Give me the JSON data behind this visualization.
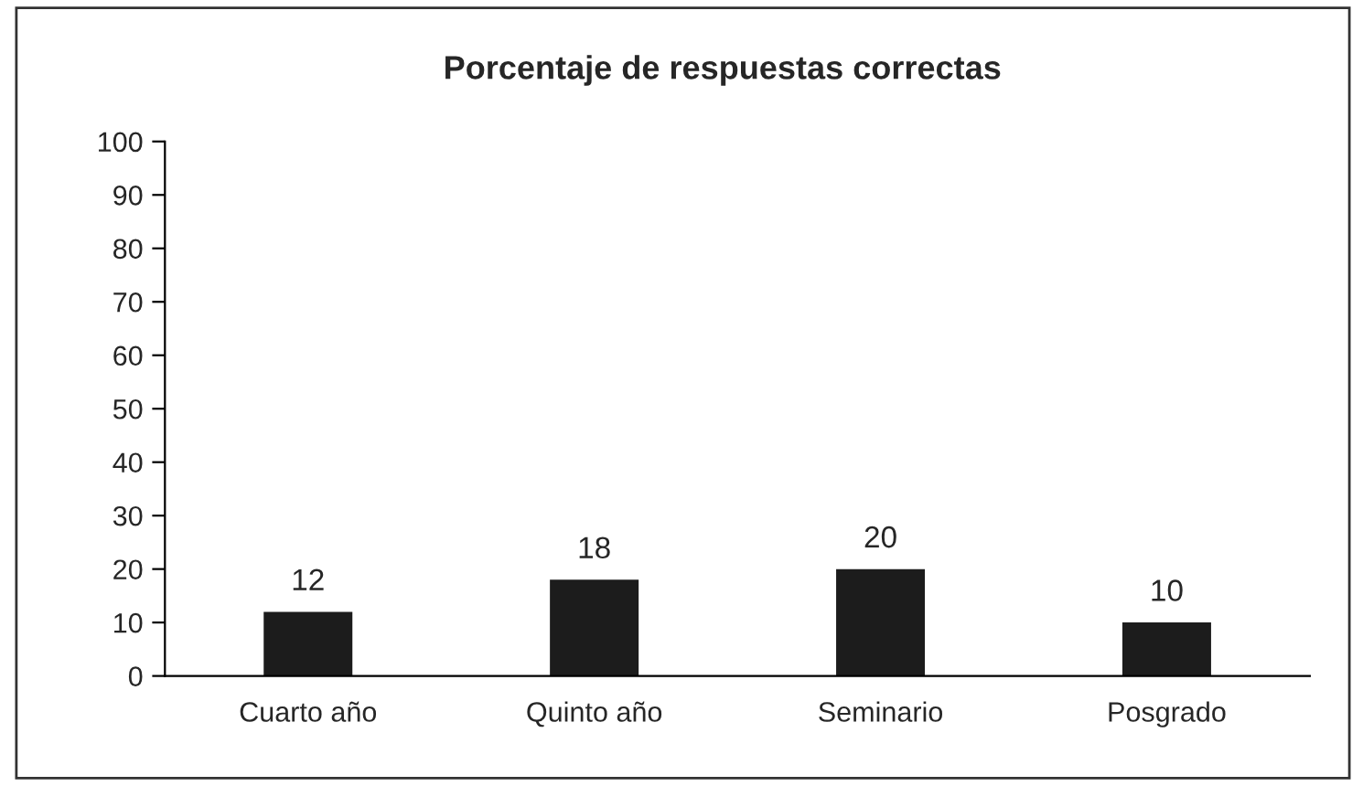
{
  "chart_data": {
    "type": "bar",
    "title": "Porcentaje de respuestas correctas",
    "categories": [
      "Cuarto año",
      "Quinto año",
      "Seminario",
      "Posgrado"
    ],
    "values": [
      12,
      18,
      20,
      10
    ],
    "color": "#1c1c1c",
    "ylim": [
      0,
      100
    ],
    "yticks": [
      0,
      10,
      20,
      30,
      40,
      50,
      60,
      70,
      80,
      90,
      100
    ],
    "data_labels": true,
    "grid": false,
    "legend": false
  }
}
